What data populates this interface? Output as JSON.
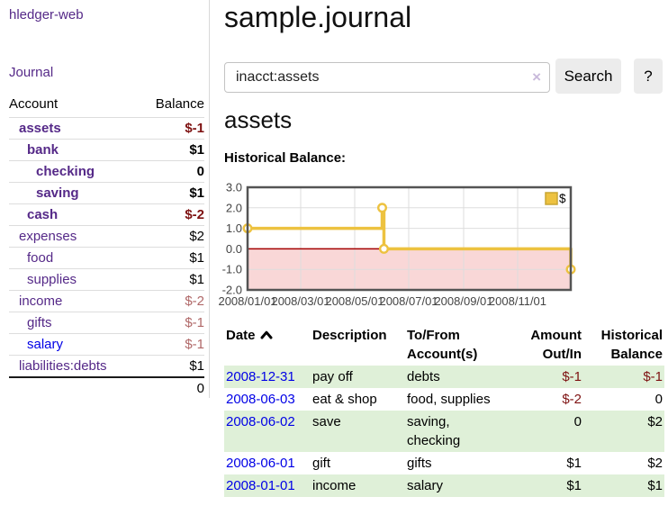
{
  "sidebar": {
    "brand": "hledger-web",
    "nav": [
      {
        "label": "Journal"
      }
    ],
    "accounts_table": {
      "headers": [
        "Account",
        "Balance"
      ],
      "rows": [
        {
          "account": "assets",
          "balance": "$-1",
          "level": 1,
          "bold": true,
          "balance_class": "neg",
          "link_color": "purple"
        },
        {
          "account": "bank",
          "balance": "$1",
          "level": 2,
          "bold": true,
          "balance_class": "pos",
          "link_color": "purple"
        },
        {
          "account": "checking",
          "balance": "0",
          "level": 3,
          "bold": true,
          "balance_class": "pos",
          "link_color": "purple"
        },
        {
          "account": "saving",
          "balance": "$1",
          "level": 3,
          "bold": true,
          "balance_class": "pos",
          "link_color": "purple"
        },
        {
          "account": "cash",
          "balance": "$-2",
          "level": 2,
          "bold": true,
          "balance_class": "neg",
          "link_color": "purple"
        },
        {
          "account": "expenses",
          "balance": "$2",
          "level": 1,
          "bold": false,
          "balance_class": "pos",
          "link_color": "purple"
        },
        {
          "account": "food",
          "balance": "$1",
          "level": 2,
          "bold": false,
          "balance_class": "pos",
          "link_color": "purple"
        },
        {
          "account": "supplies",
          "balance": "$1",
          "level": 2,
          "bold": false,
          "balance_class": "pos",
          "link_color": "purple"
        },
        {
          "account": "income",
          "balance": "$-2",
          "level": 1,
          "bold": false,
          "balance_class": "neg-dim",
          "link_color": "purple"
        },
        {
          "account": "gifts",
          "balance": "$-1",
          "level": 2,
          "bold": false,
          "balance_class": "neg-dim",
          "link_color": "purple"
        },
        {
          "account": "salary",
          "balance": "$-1",
          "level": 2,
          "bold": false,
          "balance_class": "neg-dim",
          "link_color": "blue"
        },
        {
          "account": "liabilities:debts",
          "balance": "$1",
          "level": 1,
          "bold": false,
          "balance_class": "pos",
          "link_color": "purple"
        }
      ],
      "total": "0"
    }
  },
  "main": {
    "title": "sample.journal",
    "search": {
      "value": "inacct:assets",
      "clear_icon": "×",
      "search_button": "Search",
      "help_button": "?"
    },
    "account_heading": "assets",
    "chart_label": "Historical Balance:"
  },
  "chart_data": {
    "type": "line",
    "style": "step",
    "title": "Historical Balance:",
    "xlabel": "",
    "ylabel": "",
    "xlim": [
      0,
      365
    ],
    "ylim": [
      -2,
      3
    ],
    "grid": true,
    "legend_position": "top-right",
    "yticks": [
      {
        "v": 3,
        "label": "3.0"
      },
      {
        "v": 2,
        "label": "2.0"
      },
      {
        "v": 1,
        "label": "1.0"
      },
      {
        "v": 0,
        "label": "0.0"
      },
      {
        "v": -1,
        "label": "-1.0"
      },
      {
        "v": -2,
        "label": "-2.0"
      }
    ],
    "xticks": [
      {
        "x": 0,
        "label": "2008/01/01"
      },
      {
        "x": 60,
        "label": "2008/03/01"
      },
      {
        "x": 121,
        "label": "2008/05/01"
      },
      {
        "x": 182,
        "label": "2008/07/01"
      },
      {
        "x": 244,
        "label": "2008/09/01"
      },
      {
        "x": 305,
        "label": "2008/11/01"
      }
    ],
    "series": [
      {
        "name": "$",
        "points": [
          {
            "date": "2008-01-01",
            "x": 0,
            "y": 1
          },
          {
            "date": "2008-06-01",
            "x": 152,
            "y": 2
          },
          {
            "date": "2008-06-03",
            "x": 154,
            "y": 0
          },
          {
            "date": "2008-12-31",
            "x": 365,
            "y": -1
          }
        ]
      }
    ],
    "colors": {
      "line": "#edc240",
      "marker_fill": "#ffffff",
      "negative_fill": "#f9d7d7",
      "zero_line": "#a40000",
      "grid": "#dddddd",
      "border": "#545454",
      "legend_box": "#edc240",
      "legend_box_border": "#c9a634",
      "tick_text": "#444444"
    }
  },
  "register": {
    "headers": {
      "date": "Date",
      "description": "Description",
      "accounts": "To/From Account(s)",
      "amount": "Amount Out/In",
      "balance": "Historical Balance"
    },
    "rows": [
      {
        "date": "2008-12-31",
        "description": "pay off",
        "accounts": "debts",
        "amount": "$-1",
        "amount_class": "neg",
        "balance": "$-1",
        "balance_class": "neg"
      },
      {
        "date": "2008-06-03",
        "description": "eat & shop",
        "accounts": "food, supplies",
        "amount": "$-2",
        "amount_class": "neg",
        "balance": "0",
        "balance_class": "pos"
      },
      {
        "date": "2008-06-02",
        "description": "save",
        "accounts": "saving, checking",
        "amount": "0",
        "amount_class": "pos",
        "balance": "$2",
        "balance_class": "pos"
      },
      {
        "date": "2008-06-01",
        "description": "gift",
        "accounts": "gifts",
        "amount": "$1",
        "amount_class": "pos",
        "balance": "$2",
        "balance_class": "pos"
      },
      {
        "date": "2008-01-01",
        "description": "income",
        "accounts": "salary",
        "amount": "$1",
        "amount_class": "pos",
        "balance": "$1",
        "balance_class": "pos"
      }
    ]
  }
}
